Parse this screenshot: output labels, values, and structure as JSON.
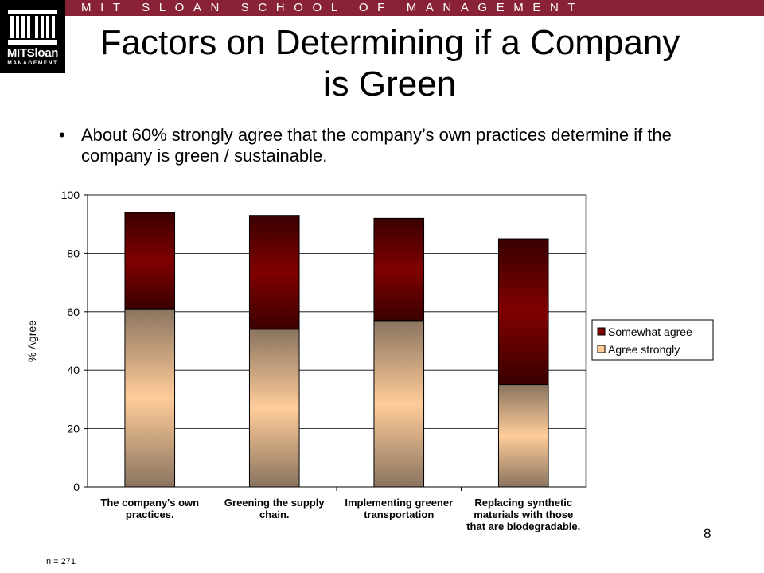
{
  "header": {
    "school_name": "MIT SLOAN SCHOOL OF MANAGEMENT",
    "logo_main": "MITSloan",
    "logo_sub": "MANAGEMENT",
    "bar_color": "#8a2237"
  },
  "slide": {
    "title": "Factors on Determining if a Company is Green",
    "bullet": "About 60% strongly agree that the company’s own practices determine if the company is green / sustainable.",
    "page_number": "8",
    "footnote": "n = 271"
  },
  "chart_data": {
    "type": "bar",
    "stacked": true,
    "categories": [
      [
        "The company's own",
        "practices."
      ],
      [
        "Greening the supply",
        "chain."
      ],
      [
        "Implementing greener",
        "transportation"
      ],
      [
        "Replacing synthetic",
        "materials with those",
        "that are biodegradable."
      ]
    ],
    "series": [
      {
        "name": "Agree strongly",
        "values": [
          61,
          54,
          57,
          35
        ],
        "color": "#ffcc99",
        "shade": "#8a7460"
      },
      {
        "name": "Somewhat agree",
        "values": [
          33,
          39,
          35,
          50
        ],
        "color": "#800000",
        "shade": "#3a0000"
      }
    ],
    "ylabel": "% Agree",
    "xlabel": "",
    "ylim": [
      0,
      100
    ],
    "yticks": [
      0,
      20,
      40,
      60,
      80,
      100
    ],
    "grid": true,
    "legend": "right"
  }
}
